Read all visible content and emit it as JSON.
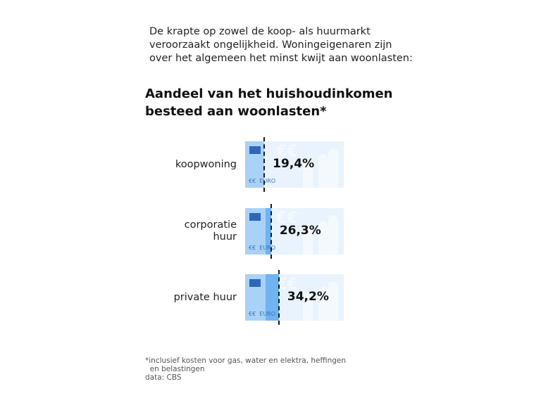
{
  "intro": [
    "De krapte op zowel de koop- als huurmarkt",
    "veroorzaakt ongelijkheid. Woningeigenaren zijn",
    "over het algemeen het minst kwijt aan woonlasten:"
  ],
  "chart_data": {
    "type": "bar",
    "title": [
      "Aandeel van het huishoudinkomen",
      "besteed aan woonlasten*"
    ],
    "categories": [
      [
        "koopwoning"
      ],
      [
        "corporatie",
        "huur"
      ],
      [
        "private huur"
      ]
    ],
    "values": [
      19.4,
      26.3,
      34.2
    ],
    "value_labels": [
      "19,4%",
      "26,3%",
      "34,2%"
    ],
    "unit": "%",
    "xlim": [
      0,
      100
    ],
    "colors": {
      "base": "#a9d2f6",
      "extra": "#6fb3f0",
      "note": "#e8f3fd"
    }
  },
  "note_text": {
    "euro_short": "€€",
    "euro": "EURO"
  },
  "footnote": [
    "*inclusief kosten voor gas, water en elektra, heffingen",
    "  en belastingen",
    "data: CBS"
  ]
}
